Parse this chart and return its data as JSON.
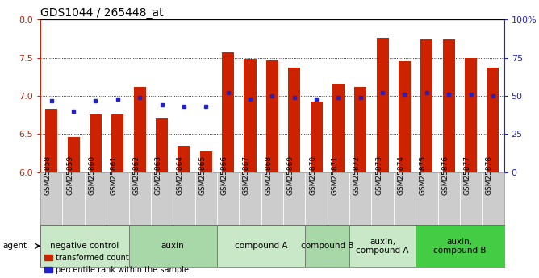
{
  "title": "GDS1044 / 265448_at",
  "samples": [
    "GSM25858",
    "GSM25859",
    "GSM25860",
    "GSM25861",
    "GSM25862",
    "GSM25863",
    "GSM25864",
    "GSM25865",
    "GSM25866",
    "GSM25867",
    "GSM25868",
    "GSM25869",
    "GSM25870",
    "GSM25871",
    "GSM25872",
    "GSM25873",
    "GSM25874",
    "GSM25875",
    "GSM25876",
    "GSM25877",
    "GSM25878"
  ],
  "bar_values": [
    6.83,
    6.46,
    6.76,
    6.76,
    7.12,
    6.7,
    6.35,
    6.27,
    7.57,
    7.48,
    7.46,
    7.37,
    6.93,
    7.16,
    7.12,
    7.76,
    7.45,
    7.74,
    7.74,
    7.5,
    7.37
  ],
  "percentile_values": [
    47,
    40,
    47,
    48,
    49,
    44,
    43,
    43,
    52,
    48,
    50,
    49,
    48,
    49,
    49,
    52,
    51,
    52,
    51,
    51,
    50
  ],
  "ylim_left": [
    6.0,
    8.0
  ],
  "ylim_right": [
    0,
    100
  ],
  "yticks_left": [
    6.0,
    6.5,
    7.0,
    7.5,
    8.0
  ],
  "yticks_right": [
    0,
    25,
    50,
    75,
    100
  ],
  "bar_color": "#cc2200",
  "dot_color": "#2222cc",
  "tick_bg_color": "#cccccc",
  "groups": [
    {
      "label": "negative control",
      "start": 0,
      "end": 4,
      "color": "#c8e8c8"
    },
    {
      "label": "auxin",
      "start": 4,
      "end": 8,
      "color": "#a8d8a8"
    },
    {
      "label": "compound A",
      "start": 8,
      "end": 12,
      "color": "#c8e8c8"
    },
    {
      "label": "compound B",
      "start": 12,
      "end": 14,
      "color": "#a8d8a8"
    },
    {
      "label": "auxin,\ncompound A",
      "start": 14,
      "end": 17,
      "color": "#c8e8c8"
    },
    {
      "label": "auxin,\ncompound B",
      "start": 17,
      "end": 21,
      "color": "#44cc44"
    }
  ],
  "bar_width": 0.55,
  "title_fontsize": 10,
  "tick_fontsize": 6.5,
  "group_label_fontsize": 7.5,
  "axis_color_left": "#cc2200",
  "axis_color_right": "#2222cc"
}
